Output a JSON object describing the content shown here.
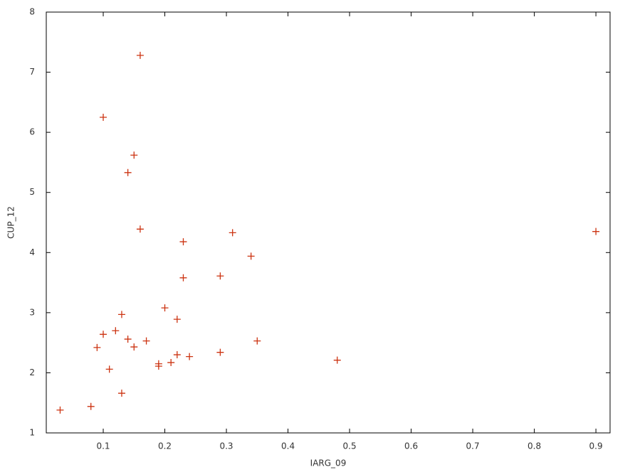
{
  "chart_data": {
    "type": "scatter",
    "x_label": "IARG_09",
    "y_label": "CUP_12",
    "color": "#cc3311",
    "xlim": [
      0.0075,
      0.923
    ],
    "ylim": [
      1,
      8
    ],
    "xticks": [
      0.1,
      0.2,
      0.3,
      0.4,
      0.5,
      0.6,
      0.7,
      0.8,
      0.9
    ],
    "yticks": [
      1,
      2,
      3,
      4,
      5,
      6,
      7,
      8
    ],
    "grid": false,
    "x": [
      0.16,
      0.1,
      0.15,
      0.14,
      0.16,
      0.23,
      0.31,
      0.34,
      0.9,
      0.23,
      0.29,
      0.2,
      0.22,
      0.13,
      0.1,
      0.12,
      0.14,
      0.17,
      0.35,
      0.09,
      0.15,
      0.22,
      0.29,
      0.24,
      0.48,
      0.19,
      0.19,
      0.21,
      0.11,
      0.13,
      0.08,
      0.03
    ],
    "y": [
      7.28,
      6.25,
      5.62,
      5.33,
      4.39,
      4.18,
      4.33,
      3.94,
      4.35,
      3.58,
      3.61,
      3.08,
      2.89,
      2.97,
      2.64,
      2.7,
      2.56,
      2.53,
      2.53,
      2.42,
      2.43,
      2.3,
      2.34,
      2.27,
      2.21,
      2.15,
      2.11,
      2.17,
      2.06,
      1.66,
      1.44,
      1.38
    ]
  }
}
